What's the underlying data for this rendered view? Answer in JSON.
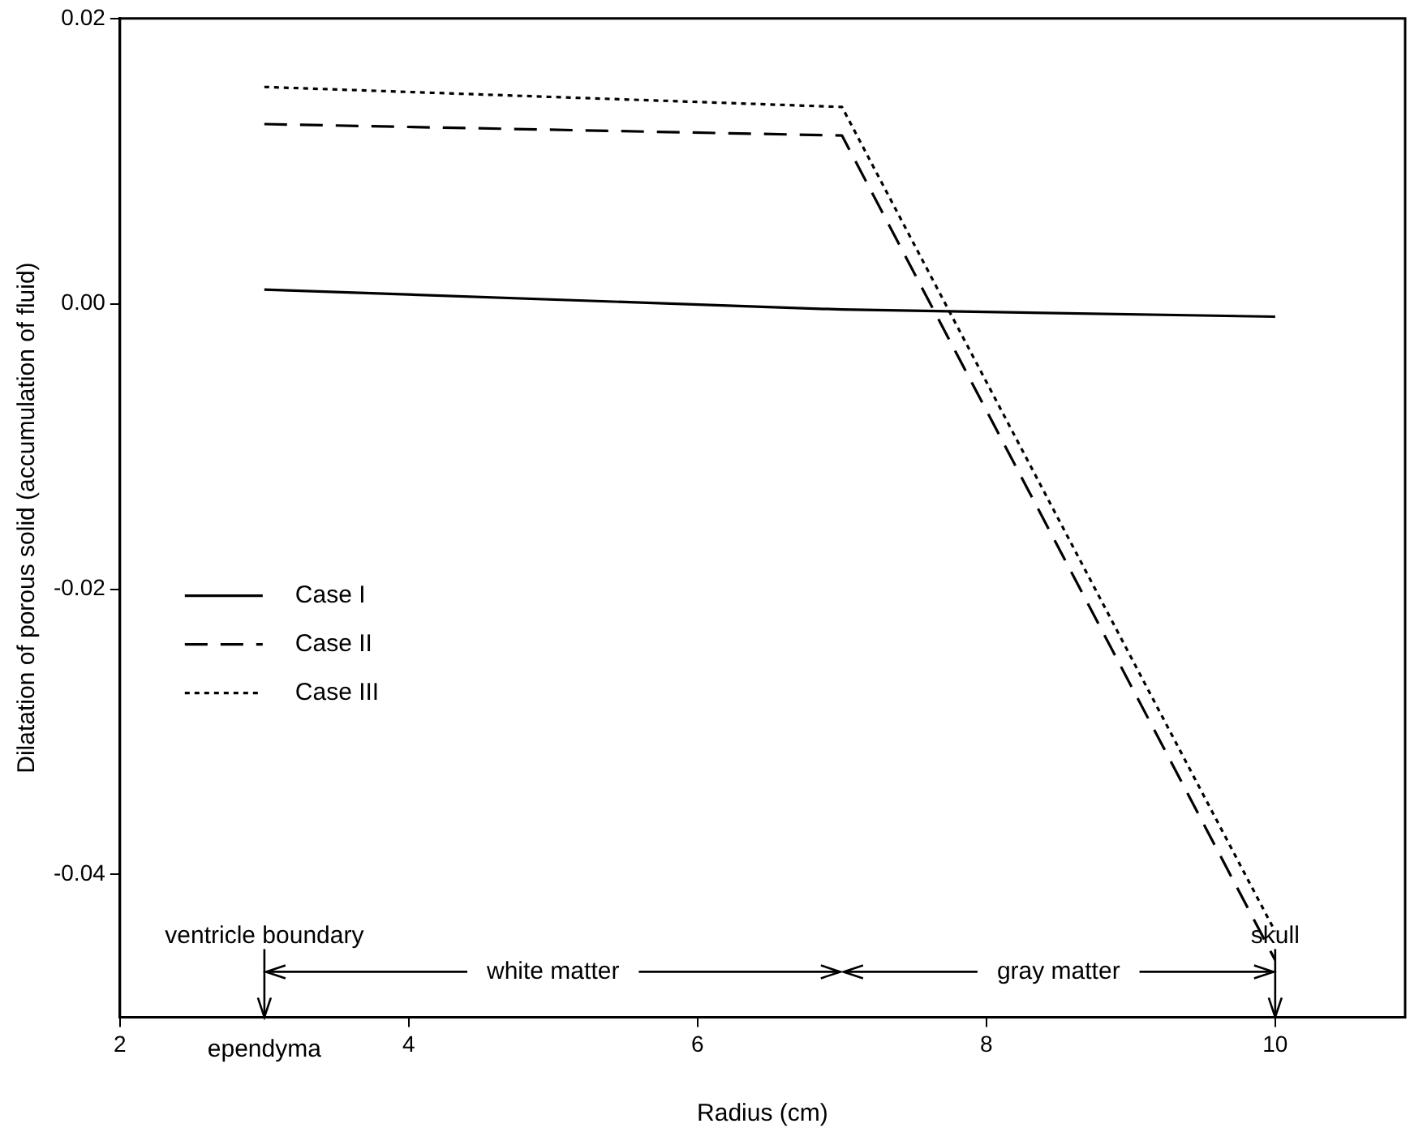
{
  "chart_data": {
    "type": "line",
    "xlabel": "Radius (cm)",
    "ylabel": "Dilatation of porous solid (accumulation of fluid)",
    "xlim": [
      2,
      10.9
    ],
    "xticks": [
      2,
      4,
      6,
      8,
      10
    ],
    "ylim": [
      -0.05,
      0.02
    ],
    "yticks": [
      {
        "value": 0.02,
        "label": "0.02"
      },
      {
        "value": 0,
        "label": "0.00"
      },
      {
        "value": -0.02,
        "label": "-0.02"
      },
      {
        "value": -0.04,
        "label": "-0.04"
      }
    ],
    "x": [
      3,
      7,
      10
    ],
    "series": [
      {
        "name": "Case I",
        "color": "#000000",
        "line_style": "solid",
        "values": [
          0.001,
          -0.0004,
          -0.0009
        ]
      },
      {
        "name": "Case II",
        "color": "#000000",
        "line_style": "dashed",
        "values": [
          0.0126,
          0.0118,
          -0.046
        ]
      },
      {
        "name": "Case III",
        "color": "#000000",
        "line_style": "dotted",
        "values": [
          0.0152,
          0.0138,
          -0.044
        ]
      }
    ],
    "annotations": [
      "ventricle boundary",
      "ependyma",
      "white matter",
      "gray matter",
      "skull"
    ],
    "legend": "left",
    "grid": false,
    "marker": "none"
  }
}
